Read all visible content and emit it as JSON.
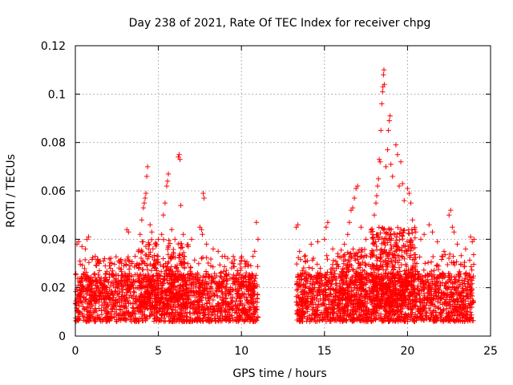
{
  "chart_data": {
    "type": "scatter",
    "title": "Day 238 of 2021, Rate Of TEC Index for receiver chpg",
    "xlabel": "GPS time / hours",
    "ylabel": "ROTI / TECUs",
    "xlim": [
      0,
      25
    ],
    "ylim": [
      0,
      0.12
    ],
    "x_ticks": [
      "0",
      "5",
      "10",
      "15",
      "20",
      "25"
    ],
    "y_ticks": [
      "0",
      "0.02",
      "0.04",
      "0.06",
      "0.08",
      "0.1",
      "0.12"
    ],
    "grid": true,
    "marker": "plus",
    "series": [
      {
        "color": "#ff0000",
        "points": [
          [
            0.1,
            0.038
          ],
          [
            0.2,
            0.039
          ],
          [
            0.4,
            0.037
          ],
          [
            0.6,
            0.036
          ],
          [
            0.7,
            0.04
          ],
          [
            0.8,
            0.041
          ],
          [
            1.2,
            0.033
          ],
          [
            1.5,
            0.031
          ],
          [
            1.8,
            0.029
          ],
          [
            2.2,
            0.03
          ],
          [
            2.6,
            0.031
          ],
          [
            3.1,
            0.044
          ],
          [
            3.2,
            0.043
          ],
          [
            3.4,
            0.03
          ],
          [
            3.6,
            0.033
          ],
          [
            3.8,
            0.035
          ],
          [
            3.9,
            0.042
          ],
          [
            4.0,
            0.048
          ],
          [
            4.1,
            0.053
          ],
          [
            4.15,
            0.055
          ],
          [
            4.2,
            0.057
          ],
          [
            4.25,
            0.059
          ],
          [
            4.3,
            0.066
          ],
          [
            4.35,
            0.07
          ],
          [
            4.5,
            0.046
          ],
          [
            4.6,
            0.043
          ],
          [
            4.8,
            0.038
          ],
          [
            5.0,
            0.04
          ],
          [
            5.2,
            0.042
          ],
          [
            5.3,
            0.05
          ],
          [
            5.4,
            0.055
          ],
          [
            5.5,
            0.062
          ],
          [
            5.55,
            0.064
          ],
          [
            5.6,
            0.067
          ],
          [
            5.8,
            0.044
          ],
          [
            6.2,
            0.074
          ],
          [
            6.25,
            0.075
          ],
          [
            6.3,
            0.073
          ],
          [
            6.35,
            0.054
          ],
          [
            6.5,
            0.042
          ],
          [
            6.8,
            0.037
          ],
          [
            7.0,
            0.04
          ],
          [
            7.5,
            0.045
          ],
          [
            7.6,
            0.044
          ],
          [
            7.65,
            0.042
          ],
          [
            7.7,
            0.059
          ],
          [
            7.75,
            0.057
          ],
          [
            7.9,
            0.038
          ],
          [
            8.3,
            0.036
          ],
          [
            8.6,
            0.035
          ],
          [
            9.0,
            0.033
          ],
          [
            9.5,
            0.03
          ],
          [
            10.0,
            0.031
          ],
          [
            10.4,
            0.029
          ],
          [
            10.7,
            0.033
          ],
          [
            10.8,
            0.035
          ],
          [
            10.9,
            0.047
          ],
          [
            11.0,
            0.04
          ],
          [
            13.3,
            0.045
          ],
          [
            13.4,
            0.046
          ],
          [
            13.5,
            0.035
          ],
          [
            13.8,
            0.033
          ],
          [
            14.2,
            0.038
          ],
          [
            14.6,
            0.039
          ],
          [
            15.0,
            0.04
          ],
          [
            15.1,
            0.045
          ],
          [
            15.2,
            0.047
          ],
          [
            15.5,
            0.036
          ],
          [
            15.8,
            0.034
          ],
          [
            16.2,
            0.038
          ],
          [
            16.4,
            0.042
          ],
          [
            16.5,
            0.047
          ],
          [
            16.6,
            0.052
          ],
          [
            16.7,
            0.053
          ],
          [
            16.8,
            0.057
          ],
          [
            16.9,
            0.061
          ],
          [
            17.0,
            0.062
          ],
          [
            17.2,
            0.045
          ],
          [
            17.5,
            0.04
          ],
          [
            17.8,
            0.043
          ],
          [
            18.0,
            0.05
          ],
          [
            18.1,
            0.055
          ],
          [
            18.15,
            0.058
          ],
          [
            18.2,
            0.062
          ],
          [
            18.25,
            0.065
          ],
          [
            18.3,
            0.073
          ],
          [
            18.35,
            0.072
          ],
          [
            18.4,
            0.085
          ],
          [
            18.45,
            0.096
          ],
          [
            18.5,
            0.101
          ],
          [
            18.52,
            0.103
          ],
          [
            18.55,
            0.108
          ],
          [
            18.58,
            0.11
          ],
          [
            18.6,
            0.104
          ],
          [
            18.7,
            0.07
          ],
          [
            18.8,
            0.077
          ],
          [
            18.85,
            0.085
          ],
          [
            18.9,
            0.089
          ],
          [
            18.95,
            0.091
          ],
          [
            19.0,
            0.071
          ],
          [
            19.1,
            0.066
          ],
          [
            19.3,
            0.079
          ],
          [
            19.4,
            0.075
          ],
          [
            19.5,
            0.062
          ],
          [
            19.6,
            0.072
          ],
          [
            19.7,
            0.063
          ],
          [
            19.8,
            0.056
          ],
          [
            20.0,
            0.061
          ],
          [
            20.1,
            0.059
          ],
          [
            20.2,
            0.055
          ],
          [
            20.3,
            0.048
          ],
          [
            20.5,
            0.043
          ],
          [
            20.8,
            0.04
          ],
          [
            21.0,
            0.042
          ],
          [
            21.3,
            0.046
          ],
          [
            21.5,
            0.043
          ],
          [
            21.8,
            0.039
          ],
          [
            22.2,
            0.035
          ],
          [
            22.5,
            0.05
          ],
          [
            22.6,
            0.052
          ],
          [
            22.7,
            0.045
          ],
          [
            22.8,
            0.043
          ],
          [
            23.0,
            0.038
          ],
          [
            23.5,
            0.036
          ],
          [
            23.8,
            0.041
          ],
          [
            23.9,
            0.039
          ],
          [
            24.0,
            0.04
          ]
        ],
        "bands": [
          {
            "x": [
              0.0,
              11.0
            ],
            "y": [
              0.006,
              0.026
            ],
            "n": 1500
          },
          {
            "x": [
              0.0,
              11.0
            ],
            "y": [
              0.015,
              0.033
            ],
            "n": 350
          },
          {
            "x": [
              3.8,
              6.8
            ],
            "y": [
              0.012,
              0.04
            ],
            "n": 260
          },
          {
            "x": [
              13.3,
              24.0
            ],
            "y": [
              0.006,
              0.026
            ],
            "n": 1500
          },
          {
            "x": [
              13.3,
              24.0
            ],
            "y": [
              0.015,
              0.034
            ],
            "n": 350
          },
          {
            "x": [
              17.8,
              20.5
            ],
            "y": [
              0.012,
              0.045
            ],
            "n": 420
          },
          {
            "x": [
              16.0,
              17.5
            ],
            "y": [
              0.012,
              0.036
            ],
            "n": 120
          }
        ]
      }
    ]
  }
}
